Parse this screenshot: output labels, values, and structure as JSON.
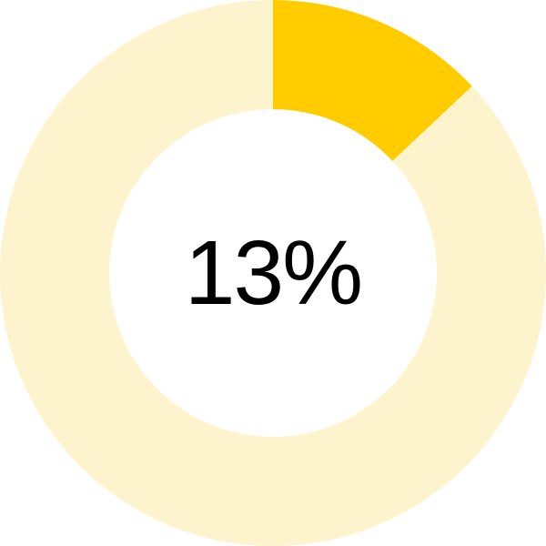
{
  "page": {
    "background_color": "#FFFFFF"
  },
  "chart_data": {
    "type": "pie",
    "variant": "donut",
    "title": "",
    "legend_position": "none",
    "start_angle_deg": 0,
    "direction": "clockwise",
    "inner_radius_ratio": 0.6,
    "slices": [
      {
        "label": "value",
        "value": 13,
        "color": "#FFCC00"
      },
      {
        "label": "remainder",
        "value": 87,
        "color": "#FDF3CC"
      }
    ],
    "center_label": "13%",
    "center_label_color": "#000000"
  }
}
